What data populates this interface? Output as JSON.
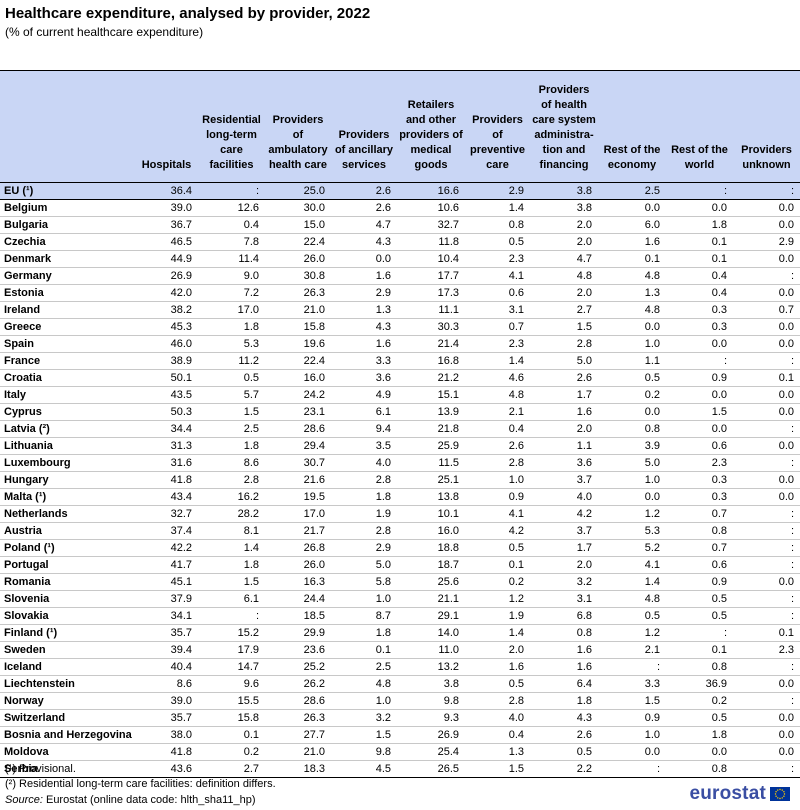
{
  "title": "Healthcare expenditure, analysed by provider, 2022",
  "subtitle": "(% of current healthcare expenditure)",
  "columns": [
    "",
    "Hospitals",
    "Residential long-term care facilities",
    "Providers of ambulatory health care",
    "Providers of ancillary services",
    "Retailers and other providers of medical goods",
    "Providers of preventive care",
    "Providers of health care system administra- tion and financing",
    "Rest of the economy",
    "Rest of the world",
    "Providers unknown"
  ],
  "rows": [
    {
      "name": "EU (¹)",
      "values": [
        "36.4",
        ":",
        "25.0",
        "2.6",
        "16.6",
        "2.9",
        "3.8",
        "2.5",
        ":",
        ":"
      ],
      "group": "eu"
    },
    {
      "name": "Belgium",
      "values": [
        "39.0",
        "12.6",
        "30.0",
        "2.6",
        "10.6",
        "1.4",
        "3.8",
        "0.0",
        "0.0",
        "0.0"
      ]
    },
    {
      "name": "Bulgaria",
      "values": [
        "36.7",
        "0.4",
        "15.0",
        "4.7",
        "32.7",
        "0.8",
        "2.0",
        "6.0",
        "1.8",
        "0.0"
      ]
    },
    {
      "name": "Czechia",
      "values": [
        "46.5",
        "7.8",
        "22.4",
        "4.3",
        "11.8",
        "0.5",
        "2.0",
        "1.6",
        "0.1",
        "2.9"
      ]
    },
    {
      "name": "Denmark",
      "values": [
        "44.9",
        "11.4",
        "26.0",
        "0.0",
        "10.4",
        "2.3",
        "4.7",
        "0.1",
        "0.1",
        "0.0"
      ]
    },
    {
      "name": "Germany",
      "values": [
        "26.9",
        "9.0",
        "30.8",
        "1.6",
        "17.7",
        "4.1",
        "4.8",
        "4.8",
        "0.4",
        ":"
      ]
    },
    {
      "name": "Estonia",
      "values": [
        "42.0",
        "7.2",
        "26.3",
        "2.9",
        "17.3",
        "0.6",
        "2.0",
        "1.3",
        "0.4",
        "0.0"
      ]
    },
    {
      "name": "Ireland",
      "values": [
        "38.2",
        "17.0",
        "21.0",
        "1.3",
        "11.1",
        "3.1",
        "2.7",
        "4.8",
        "0.3",
        "0.7"
      ]
    },
    {
      "name": "Greece",
      "values": [
        "45.3",
        "1.8",
        "15.8",
        "4.3",
        "30.3",
        "0.7",
        "1.5",
        "0.0",
        "0.3",
        "0.0"
      ]
    },
    {
      "name": "Spain",
      "values": [
        "46.0",
        "5.3",
        "19.6",
        "1.6",
        "21.4",
        "2.3",
        "2.8",
        "1.0",
        "0.0",
        "0.0"
      ]
    },
    {
      "name": "France",
      "values": [
        "38.9",
        "11.2",
        "22.4",
        "3.3",
        "16.8",
        "1.4",
        "5.0",
        "1.1",
        ":",
        ":"
      ]
    },
    {
      "name": "Croatia",
      "values": [
        "50.1",
        "0.5",
        "16.0",
        "3.6",
        "21.2",
        "4.6",
        "2.6",
        "0.5",
        "0.9",
        "0.1"
      ]
    },
    {
      "name": "Italy",
      "values": [
        "43.5",
        "5.7",
        "24.2",
        "4.9",
        "15.1",
        "4.8",
        "1.7",
        "0.2",
        "0.0",
        "0.0"
      ]
    },
    {
      "name": "Cyprus",
      "values": [
        "50.3",
        "1.5",
        "23.1",
        "6.1",
        "13.9",
        "2.1",
        "1.6",
        "0.0",
        "1.5",
        "0.0"
      ]
    },
    {
      "name": "Latvia (²)",
      "values": [
        "34.4",
        "2.5",
        "28.6",
        "9.4",
        "21.8",
        "0.4",
        "2.0",
        "0.8",
        "0.0",
        ":"
      ]
    },
    {
      "name": "Lithuania",
      "values": [
        "31.3",
        "1.8",
        "29.4",
        "3.5",
        "25.9",
        "2.6",
        "1.1",
        "3.9",
        "0.6",
        "0.0"
      ]
    },
    {
      "name": "Luxembourg",
      "values": [
        "31.6",
        "8.6",
        "30.7",
        "4.0",
        "11.5",
        "2.8",
        "3.6",
        "5.0",
        "2.3",
        ":"
      ]
    },
    {
      "name": "Hungary",
      "values": [
        "41.8",
        "2.8",
        "21.6",
        "2.8",
        "25.1",
        "1.0",
        "3.7",
        "1.0",
        "0.3",
        "0.0"
      ]
    },
    {
      "name": "Malta (¹)",
      "values": [
        "43.4",
        "16.2",
        "19.5",
        "1.8",
        "13.8",
        "0.9",
        "4.0",
        "0.0",
        "0.3",
        "0.0"
      ]
    },
    {
      "name": "Netherlands",
      "values": [
        "32.7",
        "28.2",
        "17.0",
        "1.9",
        "10.1",
        "4.1",
        "4.2",
        "1.2",
        "0.7",
        ":"
      ]
    },
    {
      "name": "Austria",
      "values": [
        "37.4",
        "8.1",
        "21.7",
        "2.8",
        "16.0",
        "4.2",
        "3.7",
        "5.3",
        "0.8",
        ":"
      ]
    },
    {
      "name": "Poland (¹)",
      "values": [
        "42.2",
        "1.4",
        "26.8",
        "2.9",
        "18.8",
        "0.5",
        "1.7",
        "5.2",
        "0.7",
        ":"
      ]
    },
    {
      "name": "Portugal",
      "values": [
        "41.7",
        "1.8",
        "26.0",
        "5.0",
        "18.7",
        "0.1",
        "2.0",
        "4.1",
        "0.6",
        ":"
      ]
    },
    {
      "name": "Romania",
      "values": [
        "45.1",
        "1.5",
        "16.3",
        "5.8",
        "25.6",
        "0.2",
        "3.2",
        "1.4",
        "0.9",
        "0.0"
      ]
    },
    {
      "name": "Slovenia",
      "values": [
        "37.9",
        "6.1",
        "24.4",
        "1.0",
        "21.1",
        "1.2",
        "3.1",
        "4.8",
        "0.5",
        ":"
      ]
    },
    {
      "name": "Slovakia",
      "values": [
        "34.1",
        ":",
        "18.5",
        "8.7",
        "29.1",
        "1.9",
        "6.8",
        "0.5",
        "0.5",
        ":"
      ]
    },
    {
      "name": "Finland (¹)",
      "values": [
        "35.7",
        "15.2",
        "29.9",
        "1.8",
        "14.0",
        "1.4",
        "0.8",
        "1.2",
        ":",
        "0.1"
      ]
    },
    {
      "name": "Sweden",
      "values": [
        "39.4",
        "17.9",
        "23.6",
        "0.1",
        "11.0",
        "2.0",
        "1.6",
        "2.1",
        "0.1",
        "2.3"
      ]
    },
    {
      "name": "Iceland",
      "values": [
        "40.4",
        "14.7",
        "25.2",
        "2.5",
        "13.2",
        "1.6",
        "1.6",
        ":",
        "0.8",
        ":"
      ],
      "group": "start"
    },
    {
      "name": "Liechtenstein",
      "values": [
        "8.6",
        "9.6",
        "26.2",
        "4.8",
        "3.8",
        "0.5",
        "6.4",
        "3.3",
        "36.9",
        "0.0"
      ]
    },
    {
      "name": "Norway",
      "values": [
        "39.0",
        "15.5",
        "28.6",
        "1.0",
        "9.8",
        "2.8",
        "1.8",
        "1.5",
        "0.2",
        ":"
      ]
    },
    {
      "name": "Switzerland",
      "values": [
        "35.7",
        "15.8",
        "26.3",
        "3.2",
        "9.3",
        "4.0",
        "4.3",
        "0.9",
        "0.5",
        "0.0"
      ]
    },
    {
      "name": "Bosnia and Herzegovina",
      "values": [
        "38.0",
        "0.1",
        "27.7",
        "1.5",
        "26.9",
        "0.4",
        "2.6",
        "1.0",
        "1.8",
        "0.0"
      ],
      "group": "start"
    },
    {
      "name": "Moldova",
      "values": [
        "41.8",
        "0.2",
        "21.0",
        "9.8",
        "25.4",
        "1.3",
        "0.5",
        "0.0",
        "0.0",
        "0.0"
      ]
    },
    {
      "name": "Serbia",
      "values": [
        "43.6",
        "2.7",
        "18.3",
        "4.5",
        "26.5",
        "1.5",
        "2.2",
        ":",
        "0.8",
        ":"
      ],
      "group": "last"
    }
  ],
  "footnotes": [
    "(¹) Provisional.",
    "(²) Residential long-term care facilities: definition differs."
  ],
  "source": {
    "label": "Source:",
    "text": " Eurostat (online data code: hlth_sha11_hp)"
  },
  "logo": {
    "text": "eurostat",
    "flag_color": "#003399",
    "star_color": "#ffcc00"
  }
}
